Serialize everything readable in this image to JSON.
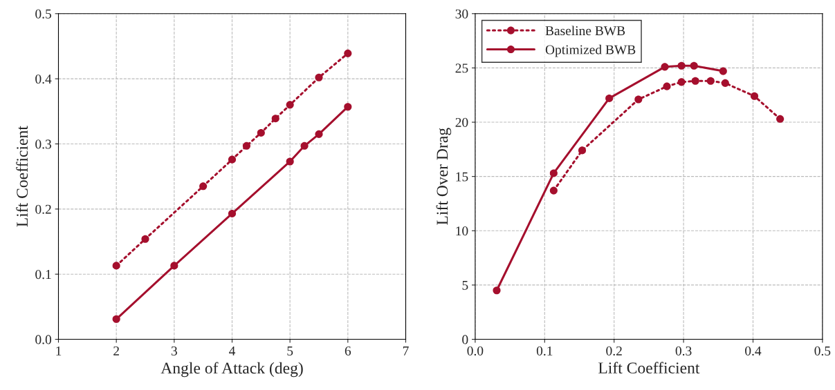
{
  "chart_data": [
    {
      "type": "line",
      "xlabel": "Angle of Attack (deg)",
      "ylabel": "Lift Coefficient",
      "xlim": [
        1,
        7
      ],
      "xticks": [
        1,
        2,
        3,
        4,
        5,
        6,
        7
      ],
      "ylim": [
        0,
        0.5
      ],
      "yticks": [
        {
          "value": 0,
          "label": "0.0"
        },
        0.1,
        0.2,
        0.3,
        0.4,
        0.5
      ],
      "grid": true,
      "legend": false,
      "marker": "circle",
      "series": [
        {
          "color": "#a50f2d",
          "line_style": "dotted",
          "x": [
            2,
            2.5,
            3.5,
            4,
            4.25,
            4.5,
            4.75,
            5,
            5.5,
            6
          ],
          "values": [
            0.113,
            0.154,
            0.235,
            0.276,
            0.297,
            0.317,
            0.339,
            0.36,
            0.402,
            0.439
          ]
        },
        {
          "color": "#a50f2d",
          "line_style": "solid",
          "x": [
            2,
            3,
            4,
            5,
            5.25,
            5.5,
            6
          ],
          "values": [
            0.031,
            0.113,
            0.193,
            0.273,
            0.297,
            0.315,
            0.357
          ]
        }
      ]
    },
    {
      "type": "line",
      "xlabel": "Lift Coefficient",
      "ylabel": "Lift Over Drag",
      "xlim": [
        0,
        0.5
      ],
      "xticks": [
        {
          "value": 0,
          "label": "0.0"
        },
        0.1,
        0.2,
        0.3,
        0.4,
        0.5
      ],
      "ylim": [
        0,
        30
      ],
      "yticks": [
        0,
        5,
        10,
        15,
        20,
        25,
        30
      ],
      "grid": true,
      "legend": "top left",
      "marker": "circle",
      "series": [
        {
          "name": "Baseline BWB",
          "color": "#a50f2d",
          "line_style": "dotted",
          "x": [
            0.113,
            0.154,
            0.235,
            0.276,
            0.297,
            0.317,
            0.339,
            0.36,
            0.402,
            0.439
          ],
          "values": [
            13.7,
            17.4,
            22.1,
            23.3,
            23.7,
            23.8,
            23.8,
            23.6,
            22.4,
            20.3
          ]
        },
        {
          "name": "Optimized BWB",
          "color": "#a50f2d",
          "line_style": "solid",
          "x": [
            0.031,
            0.113,
            0.193,
            0.273,
            0.297,
            0.315,
            0.357
          ],
          "values": [
            4.5,
            15.3,
            22.2,
            25.1,
            25.2,
            25.2,
            24.7
          ]
        }
      ]
    }
  ]
}
